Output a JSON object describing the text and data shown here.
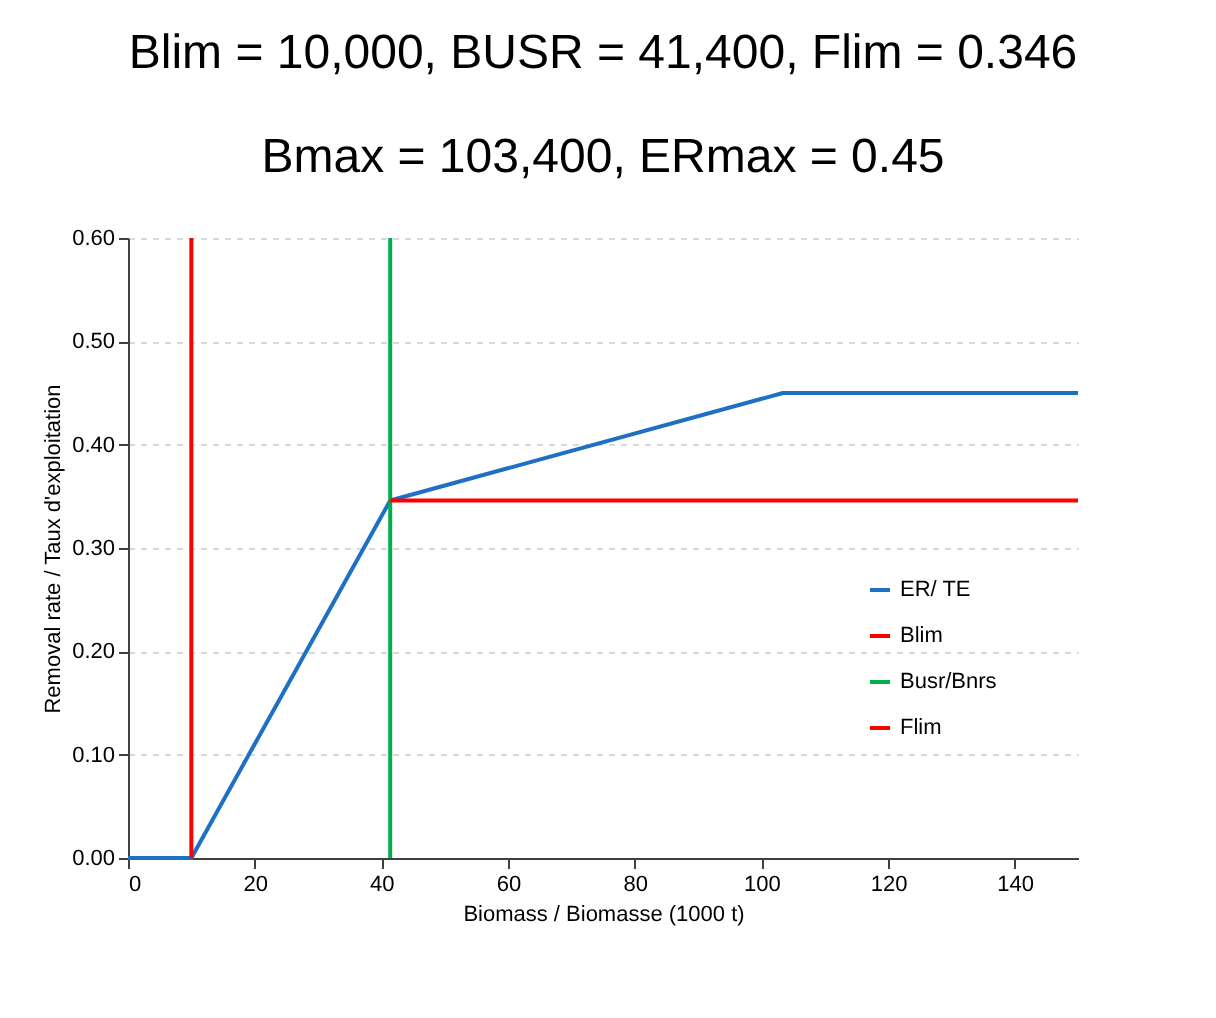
{
  "chart_data": {
    "type": "line",
    "title": "Blim = 10,000, BUSR = 41,400, Flim = 0.346",
    "subtitle": "Bmax = 103,400, ERmax = 0.45",
    "xlabel": "Biomass / Biomasse (1000 t)",
    "ylabel": "Removal rate / Taux d'exploitation",
    "series": [
      {
        "name": "ER/ TE",
        "color": "#1f6fc5",
        "x": [
          0,
          10,
          41.4,
          103.4,
          150
        ],
        "values": [
          0,
          0,
          0.346,
          0.45,
          0.45
        ]
      },
      {
        "name": "Blim",
        "color": "#ff0000",
        "x": [
          10,
          10
        ],
        "values": [
          0,
          0.6
        ]
      },
      {
        "name": "Busr/Bnrs",
        "color": "#00b050",
        "x": [
          41.4,
          41.4
        ],
        "values": [
          0,
          0.6
        ]
      },
      {
        "name": "Flim",
        "color": "#ff0000",
        "x": [
          41.4,
          150
        ],
        "values": [
          0.346,
          0.346
        ]
      }
    ],
    "xlim": [
      0,
      150
    ],
    "xticks": [
      0,
      20,
      40,
      60,
      80,
      100,
      120,
      140
    ],
    "ylim": [
      0,
      0.6
    ],
    "yticks": [
      {
        "value": 0,
        "label": "0.00"
      },
      {
        "value": 0.1,
        "label": "0.10"
      },
      {
        "value": 0.2,
        "label": "0.20"
      },
      {
        "value": 0.3,
        "label": "0.30"
      },
      {
        "value": 0.4,
        "label": "0.40"
      },
      {
        "value": 0.5,
        "label": "0.50"
      },
      {
        "value": 0.6,
        "label": "0.60"
      }
    ],
    "grid": "y",
    "legend": "right",
    "marker": "none",
    "line_style": "solid"
  }
}
